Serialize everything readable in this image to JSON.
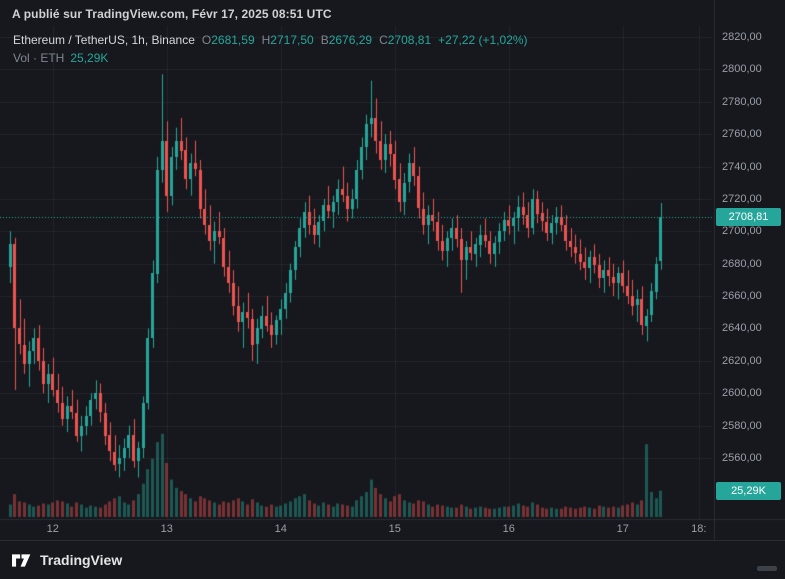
{
  "header": {
    "publish_line": "A publié sur TradingView.com, Févr 17, 2025 08:51 UTC"
  },
  "legend": {
    "symbol": "Ethereum / TetherUS, 1h, Binance",
    "ohlc": [
      {
        "label": "O",
        "value": "2681,59"
      },
      {
        "label": "H",
        "value": "2717,50"
      },
      {
        "label": "B",
        "value": "2676,29"
      },
      {
        "label": "C",
        "value": "2708,81"
      }
    ],
    "change": "+27,22 (+1,02%)"
  },
  "volume_row": {
    "label": "Vol · ETH",
    "value": "25,29K"
  },
  "axis_badges": {
    "price": "2708,81",
    "volume": "25,29K"
  },
  "footer": {
    "brand": "TradingView"
  },
  "colors": {
    "bg": "#16181d",
    "footer_bg": "#16181d",
    "header_text": "#cfd1d4",
    "title_text": "#d5d7da",
    "dim": "#81858f",
    "axis_text": "#9b9fa8",
    "up": "#26a69a",
    "down": "#ef5350",
    "vol_up": "rgba(38,166,154,0.45)",
    "vol_down": "rgba(239,83,80,0.45)",
    "grid": "rgba(255,255,255,0.06)",
    "border": "#2a2d35",
    "badge_bg": "#26a69a",
    "brand_text": "#e4e5e7"
  },
  "chart_data": {
    "type": "candlestick",
    "title": "Ethereum / TetherUS, 1h, Binance",
    "exchange": "Binance",
    "interval": "1h",
    "xlabel": "",
    "ylabel": "",
    "grid": true,
    "open": 2681.59,
    "high": 2717.5,
    "low": 2676.29,
    "close": 2708.81,
    "change": "+27,22 (+1,02%)",
    "price_line": 2708.81,
    "last_volume": 25.29,
    "volume_unit": "K",
    "ylim": [
      2545,
      2830
    ],
    "y_ticks": [
      {
        "label": "2820,00",
        "value": 2820
      },
      {
        "label": "2800,00",
        "value": 2800
      },
      {
        "label": "2780,00",
        "value": 2780
      },
      {
        "label": "2760,00",
        "value": 2760
      },
      {
        "label": "2740,00",
        "value": 2740
      },
      {
        "label": "2720,00",
        "value": 2720
      },
      {
        "label": "2700,00",
        "value": 2700
      },
      {
        "label": "2680,00",
        "value": 2680
      },
      {
        "label": "2660,00",
        "value": 2660
      },
      {
        "label": "2640,00",
        "value": 2640
      },
      {
        "label": "2620,00",
        "value": 2620
      },
      {
        "label": "2600,00",
        "value": 2600
      },
      {
        "label": "2580,00",
        "value": 2580
      },
      {
        "label": "2560,00",
        "value": 2560
      }
    ],
    "x_ticks": [
      {
        "label": "12",
        "index": 9
      },
      {
        "label": "13",
        "index": 33
      },
      {
        "label": "14",
        "index": 57
      },
      {
        "label": "15",
        "index": 81
      },
      {
        "label": "16",
        "index": 105
      },
      {
        "label": "17",
        "index": 129
      },
      {
        "label": "18:",
        "index": 145
      }
    ],
    "candles": [
      [
        2678,
        2700,
        2668,
        2692,
        12
      ],
      [
        2692,
        2696,
        2602,
        2640,
        22
      ],
      [
        2640,
        2658,
        2624,
        2630,
        15
      ],
      [
        2630,
        2646,
        2612,
        2618,
        14
      ],
      [
        2618,
        2632,
        2604,
        2626,
        12
      ],
      [
        2626,
        2640,
        2618,
        2634,
        10
      ],
      [
        2634,
        2642,
        2614,
        2620,
        11
      ],
      [
        2620,
        2628,
        2600,
        2606,
        13
      ],
      [
        2606,
        2618,
        2594,
        2612,
        12
      ],
      [
        2612,
        2622,
        2598,
        2602,
        14
      ],
      [
        2602,
        2612,
        2588,
        2594,
        16
      ],
      [
        2594,
        2604,
        2580,
        2584,
        15
      ],
      [
        2584,
        2598,
        2576,
        2592,
        13
      ],
      [
        2592,
        2602,
        2584,
        2588,
        10
      ],
      [
        2588,
        2596,
        2570,
        2574,
        14
      ],
      [
        2574,
        2586,
        2564,
        2580,
        12
      ],
      [
        2580,
        2592,
        2574,
        2586,
        9
      ],
      [
        2586,
        2600,
        2580,
        2596,
        11
      ],
      [
        2596,
        2608,
        2590,
        2600,
        10
      ],
      [
        2600,
        2606,
        2582,
        2588,
        9
      ],
      [
        2588,
        2594,
        2568,
        2574,
        12
      ],
      [
        2574,
        2582,
        2558,
        2564,
        15
      ],
      [
        2564,
        2574,
        2552,
        2556,
        18
      ],
      [
        2556,
        2568,
        2548,
        2560,
        20
      ],
      [
        2560,
        2572,
        2552,
        2566,
        14
      ],
      [
        2566,
        2580,
        2560,
        2574,
        12
      ],
      [
        2574,
        2584,
        2554,
        2558,
        16
      ],
      [
        2558,
        2570,
        2548,
        2566,
        22
      ],
      [
        2566,
        2598,
        2560,
        2594,
        32
      ],
      [
        2594,
        2640,
        2590,
        2634,
        46
      ],
      [
        2634,
        2682,
        2628,
        2674,
        56
      ],
      [
        2674,
        2746,
        2668,
        2738,
        72
      ],
      [
        2738,
        2797,
        2730,
        2756,
        80
      ],
      [
        2756,
        2768,
        2712,
        2722,
        52
      ],
      [
        2722,
        2752,
        2716,
        2746,
        36
      ],
      [
        2746,
        2764,
        2738,
        2756,
        28
      ],
      [
        2756,
        2770,
        2744,
        2750,
        25
      ],
      [
        2750,
        2758,
        2726,
        2732,
        22
      ],
      [
        2732,
        2748,
        2722,
        2742,
        18
      ],
      [
        2742,
        2756,
        2734,
        2738,
        15
      ],
      [
        2738,
        2744,
        2708,
        2714,
        20
      ],
      [
        2714,
        2726,
        2698,
        2704,
        18
      ],
      [
        2704,
        2716,
        2688,
        2694,
        16
      ],
      [
        2694,
        2706,
        2680,
        2700,
        14
      ],
      [
        2700,
        2712,
        2692,
        2696,
        12
      ],
      [
        2696,
        2702,
        2672,
        2678,
        15
      ],
      [
        2678,
        2688,
        2662,
        2668,
        14
      ],
      [
        2668,
        2676,
        2648,
        2654,
        16
      ],
      [
        2654,
        2666,
        2638,
        2644,
        18
      ],
      [
        2644,
        2656,
        2628,
        2650,
        15
      ],
      [
        2650,
        2662,
        2640,
        2646,
        12
      ],
      [
        2646,
        2652,
        2620,
        2630,
        17
      ],
      [
        2630,
        2646,
        2618,
        2640,
        14
      ],
      [
        2640,
        2654,
        2634,
        2648,
        11
      ],
      [
        2648,
        2660,
        2638,
        2642,
        10
      ],
      [
        2642,
        2650,
        2628,
        2636,
        12
      ],
      [
        2636,
        2648,
        2630,
        2645,
        10
      ],
      [
        2645,
        2658,
        2636,
        2652,
        11
      ],
      [
        2652,
        2668,
        2646,
        2662,
        13
      ],
      [
        2662,
        2680,
        2656,
        2676,
        15
      ],
      [
        2676,
        2694,
        2670,
        2690,
        18
      ],
      [
        2690,
        2708,
        2684,
        2702,
        20
      ],
      [
        2702,
        2718,
        2696,
        2712,
        22
      ],
      [
        2712,
        2722,
        2698,
        2704,
        16
      ],
      [
        2704,
        2714,
        2692,
        2698,
        13
      ],
      [
        2698,
        2710,
        2690,
        2706,
        11
      ],
      [
        2706,
        2720,
        2700,
        2716,
        14
      ],
      [
        2716,
        2728,
        2708,
        2712,
        12
      ],
      [
        2712,
        2722,
        2702,
        2718,
        10
      ],
      [
        2718,
        2732,
        2710,
        2726,
        13
      ],
      [
        2726,
        2740,
        2718,
        2722,
        12
      ],
      [
        2722,
        2730,
        2706,
        2714,
        11
      ],
      [
        2714,
        2726,
        2708,
        2720,
        10
      ],
      [
        2720,
        2744,
        2714,
        2738,
        16
      ],
      [
        2738,
        2758,
        2732,
        2752,
        20
      ],
      [
        2752,
        2772,
        2744,
        2766,
        24
      ],
      [
        2766,
        2793,
        2758,
        2770,
        36
      ],
      [
        2770,
        2782,
        2748,
        2756,
        28
      ],
      [
        2756,
        2768,
        2738,
        2744,
        22
      ],
      [
        2744,
        2760,
        2736,
        2754,
        18
      ],
      [
        2754,
        2762,
        2740,
        2748,
        15
      ],
      [
        2748,
        2756,
        2726,
        2732,
        20
      ],
      [
        2732,
        2742,
        2712,
        2718,
        22
      ],
      [
        2718,
        2736,
        2710,
        2730,
        16
      ],
      [
        2730,
        2748,
        2724,
        2742,
        14
      ],
      [
        2742,
        2752,
        2728,
        2734,
        13
      ],
      [
        2734,
        2740,
        2708,
        2714,
        16
      ],
      [
        2714,
        2724,
        2698,
        2704,
        15
      ],
      [
        2704,
        2716,
        2692,
        2710,
        12
      ],
      [
        2710,
        2720,
        2700,
        2706,
        10
      ],
      [
        2706,
        2712,
        2688,
        2694,
        12
      ],
      [
        2694,
        2704,
        2682,
        2688,
        11
      ],
      [
        2688,
        2700,
        2678,
        2696,
        10
      ],
      [
        2696,
        2708,
        2688,
        2702,
        9
      ],
      [
        2702,
        2710,
        2690,
        2695,
        9
      ],
      [
        2695,
        2702,
        2662,
        2682,
        12
      ],
      [
        2682,
        2694,
        2670,
        2690,
        10
      ],
      [
        2690,
        2700,
        2682,
        2686,
        8
      ],
      [
        2686,
        2696,
        2678,
        2692,
        9
      ],
      [
        2692,
        2704,
        2684,
        2698,
        10
      ],
      [
        2698,
        2708,
        2690,
        2694,
        9
      ],
      [
        2694,
        2700,
        2680,
        2686,
        8
      ],
      [
        2686,
        2697,
        2678,
        2693,
        8
      ],
      [
        2693,
        2705,
        2686,
        2700,
        9
      ],
      [
        2700,
        2712,
        2694,
        2707,
        10
      ],
      [
        2707,
        2716,
        2698,
        2703,
        10
      ],
      [
        2703,
        2712,
        2692,
        2708,
        11
      ],
      [
        2708,
        2722,
        2700,
        2715,
        13
      ],
      [
        2715,
        2724,
        2704,
        2710,
        11
      ],
      [
        2710,
        2718,
        2696,
        2702,
        10
      ],
      [
        2702,
        2726,
        2698,
        2720,
        14
      ],
      [
        2720,
        2725,
        2705,
        2711,
        12
      ],
      [
        2711,
        2718,
        2700,
        2706,
        9
      ],
      [
        2706,
        2714,
        2694,
        2699,
        8
      ],
      [
        2699,
        2710,
        2692,
        2705,
        9
      ],
      [
        2705,
        2715,
        2698,
        2709,
        8
      ],
      [
        2709,
        2716,
        2700,
        2704,
        8
      ],
      [
        2704,
        2710,
        2688,
        2694,
        10
      ],
      [
        2694,
        2702,
        2684,
        2690,
        9
      ],
      [
        2690,
        2698,
        2680,
        2686,
        8
      ],
      [
        2686,
        2695,
        2676,
        2681,
        9
      ],
      [
        2681,
        2690,
        2670,
        2677,
        10
      ],
      [
        2677,
        2688,
        2668,
        2684,
        9
      ],
      [
        2684,
        2692,
        2674,
        2679,
        8
      ],
      [
        2679,
        2686,
        2665,
        2671,
        11
      ],
      [
        2671,
        2682,
        2662,
        2676,
        10
      ],
      [
        2676,
        2684,
        2666,
        2672,
        9
      ],
      [
        2672,
        2680,
        2660,
        2668,
        10
      ],
      [
        2668,
        2678,
        2658,
        2674,
        9
      ],
      [
        2674,
        2682,
        2662,
        2666,
        11
      ],
      [
        2666,
        2676,
        2655,
        2660,
        12
      ],
      [
        2660,
        2670,
        2648,
        2654,
        14
      ],
      [
        2654,
        2664,
        2644,
        2658,
        12
      ],
      [
        2658,
        2666,
        2636,
        2642,
        16
      ],
      [
        2642,
        2652,
        2632,
        2648,
        70
      ],
      [
        2648,
        2668,
        2644,
        2663,
        24
      ],
      [
        2663,
        2684,
        2658,
        2680,
        18
      ],
      [
        2681.59,
        2717.5,
        2676.29,
        2708.81,
        25.29
      ]
    ]
  }
}
